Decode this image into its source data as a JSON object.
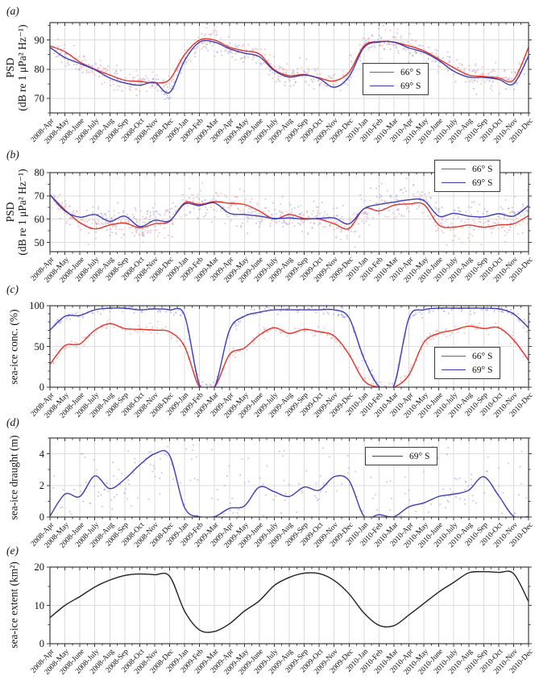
{
  "months": [
    "2008-Apr",
    "2008-May",
    "2008-June",
    "2008-July",
    "2008-Aug",
    "2008-Sep",
    "2008-Oct",
    "2008-Nov",
    "2008-Dec",
    "2009-Jan",
    "2009-Feb",
    "2009-Mar",
    "2009-Apr",
    "2009-May",
    "2009-June",
    "2009-July",
    "2009-Aug",
    "2009-Sep",
    "2009-Oct",
    "2009-Nov",
    "2009-Dec",
    "2010-Jan",
    "2010-Feb",
    "2010-Mar",
    "2010-Apr",
    "2010-May",
    "2010-June",
    "2010-July",
    "2010-Aug",
    "2010-Sep",
    "2010-Oct",
    "2010-Nov",
    "2010-Dec"
  ],
  "colors": {
    "red_line": "#e2352b",
    "red_scatter": "#f2a19c",
    "blue_line": "#3d3dba",
    "blue_scatter": "#a5a5e4",
    "black_line": "#222222",
    "grid": "#dcdcdc",
    "frame": "#3c3c3c"
  },
  "chart_data": [
    {
      "panel": "a",
      "label": "(a)",
      "type": "scatter+line",
      "ylabel_lines": [
        "PSD",
        "(dB re 1 μPa² Hz⁻¹)"
      ],
      "ylim": [
        65,
        96
      ],
      "yticks": [
        70,
        80,
        90
      ],
      "yminor": 5,
      "legend": true,
      "series": [
        {
          "name": "66° S",
          "color": "#e2352b",
          "scatter_color": "#f2a19c",
          "scatter_n": 380,
          "scatter_sd": 2.0,
          "values": [
            88,
            86,
            82.5,
            80,
            78,
            76.2,
            75.8,
            75.3,
            76.5,
            85,
            90,
            90,
            87.5,
            86.3,
            85.2,
            79.8,
            77.8,
            78.2,
            77,
            76,
            79,
            88,
            89.5,
            89.3,
            88,
            86.3,
            83.5,
            80.5,
            78,
            77.5,
            77,
            76.3,
            87.5
          ]
        },
        {
          "name": "69° S",
          "color": "#3d3dba",
          "scatter_color": "#a5a5e4",
          "scatter_n": 380,
          "scatter_sd": 2.0,
          "values": [
            87.5,
            84,
            82,
            79.8,
            77,
            75.3,
            74.5,
            75.5,
            72,
            83,
            89.3,
            89.3,
            87,
            85.5,
            84.3,
            79.5,
            77.3,
            78,
            76.8,
            73.8,
            77.5,
            87.5,
            89.3,
            89.3,
            87.3,
            85.8,
            83,
            79.3,
            77.3,
            77.2,
            76.5,
            75,
            84.5
          ]
        }
      ]
    },
    {
      "panel": "b",
      "label": "(b)",
      "type": "scatter+line",
      "ylabel_lines": [
        "PSD",
        "(dB re 1 μPa² Hz⁻¹)"
      ],
      "ylim": [
        46,
        80
      ],
      "yticks": [
        50,
        60,
        70,
        80
      ],
      "yminor": 5,
      "legend": true,
      "series": [
        {
          "name": "66° S",
          "color": "#e2352b",
          "scatter_color": "#f2a19c",
          "scatter_n": 430,
          "scatter_sd": 3.2,
          "values": [
            70.5,
            64,
            58.5,
            55.8,
            57.5,
            58.3,
            56.3,
            58,
            59,
            67,
            66.3,
            67.5,
            66.8,
            66.3,
            63.5,
            60,
            62,
            60.3,
            60,
            58,
            56,
            64.5,
            63.5,
            66,
            66.5,
            66.3,
            57.5,
            56.5,
            57.5,
            56.5,
            57.5,
            58,
            61.5
          ]
        },
        {
          "name": "69° S",
          "color": "#3d3dba",
          "scatter_color": "#a5a5e4",
          "scatter_n": 430,
          "scatter_sd": 3.2,
          "values": [
            70.5,
            63.5,
            60.8,
            62,
            59,
            61.3,
            56.8,
            59.5,
            59.3,
            66.5,
            65.8,
            67,
            62.5,
            62,
            61.3,
            60.3,
            60.5,
            60,
            60.3,
            60.5,
            58,
            64.5,
            66.3,
            67.3,
            68.3,
            68,
            61.3,
            62.5,
            61.3,
            61,
            62.3,
            61.3,
            65.8
          ]
        }
      ]
    },
    {
      "panel": "c",
      "label": "(c)",
      "type": "scatter+line",
      "ylabel_lines": [
        "sea-ice conc. (%)"
      ],
      "ylim": [
        0,
        100
      ],
      "yticks": [
        0,
        50,
        100
      ],
      "yminor": 10,
      "legend": true,
      "series": [
        {
          "name": "66° S",
          "color": "#e2352b",
          "scatter_color": "#f2a19c",
          "scatter_n": 310,
          "scatter_sd": 3.0,
          "values": [
            28,
            51,
            53,
            70,
            78,
            72,
            71,
            70,
            68,
            50,
            0,
            0,
            40,
            48,
            64,
            73,
            66,
            71,
            68,
            63,
            40,
            8,
            0,
            0,
            15,
            55,
            66,
            70,
            75,
            72,
            73,
            58,
            33
          ]
        },
        {
          "name": "69° S",
          "color": "#3d3dba",
          "scatter_color": "#a5a5e4",
          "scatter_n": 310,
          "scatter_sd": 3.0,
          "values": [
            70,
            87,
            88,
            95,
            97,
            97,
            95,
            96,
            95,
            88,
            3,
            0,
            70,
            87,
            92,
            95,
            95,
            95,
            95,
            95,
            85,
            35,
            1,
            2,
            85,
            95,
            97,
            97,
            97,
            97,
            96,
            90,
            73
          ]
        }
      ]
    },
    {
      "panel": "d",
      "label": "(d)",
      "type": "scatter+line",
      "ylabel_lines": [
        "sea-ice draught (m)"
      ],
      "ylim": [
        0,
        5
      ],
      "yticks": [
        0,
        2,
        4
      ],
      "yminor": 1,
      "legend": true,
      "series": [
        {
          "name": "69° S",
          "color": "#3d3dba",
          "scatter_color": "#a5a5e4",
          "scatter_n": 240,
          "scatter_sd": 0.55,
          "scatter_mode": "wide",
          "values": [
            0.05,
            1.45,
            1.3,
            2.6,
            1.8,
            2.4,
            3.3,
            4.0,
            3.9,
            0.6,
            0.02,
            0.02,
            0.55,
            0.7,
            1.9,
            1.6,
            1.3,
            1.9,
            1.7,
            2.55,
            2.3,
            0.05,
            0.15,
            0.02,
            0.65,
            0.9,
            1.3,
            1.45,
            1.7,
            2.55,
            1.35,
            0.05,
            0.02
          ]
        }
      ]
    },
    {
      "panel": "e",
      "label": "(e)",
      "type": "line",
      "ylabel_lines": [
        "sea-ice extent (km²)"
      ],
      "ylim": [
        0,
        20
      ],
      "yticks": [
        0,
        10,
        20
      ],
      "yminor": 5,
      "legend": false,
      "series": [
        {
          "name": "extent",
          "color": "#222222",
          "values": [
            6.8,
            10,
            12.3,
            14.8,
            16.6,
            17.8,
            18.2,
            18,
            17.6,
            8.5,
            3.6,
            3.2,
            5.2,
            8.5,
            11.2,
            15.2,
            17.3,
            18.4,
            18.3,
            16.5,
            13,
            8,
            4.8,
            4.7,
            7.5,
            10.5,
            13.5,
            16,
            18.5,
            18.8,
            18.6,
            18.3,
            11
          ]
        }
      ]
    }
  ]
}
